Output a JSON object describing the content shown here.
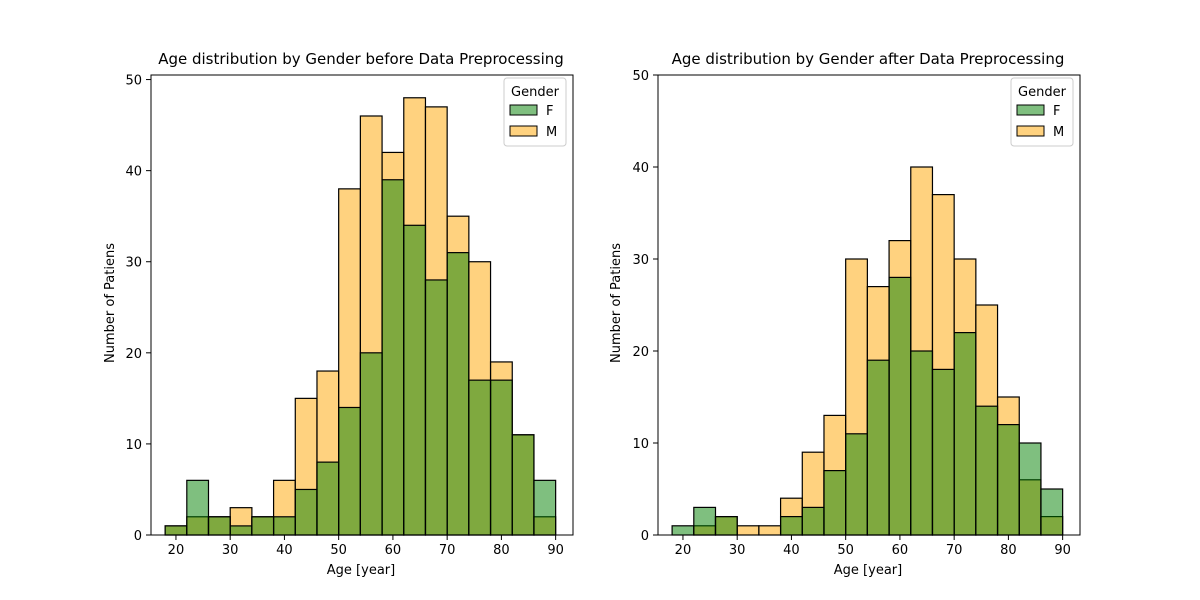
{
  "colors": {
    "F": "#008000",
    "M": "#ffa500",
    "overlap": "#7ea636",
    "edge": "#000000"
  },
  "chart_data": [
    {
      "type": "histogram",
      "title": "Age distribution by Gender before Data Preprocessing",
      "xlabel": "Age [year]",
      "ylabel": "Number of Patiens",
      "xlim": [
        15.4,
        93.2
      ],
      "ylim": [
        0,
        50.5
      ],
      "xticks": [
        20,
        30,
        40,
        50,
        60,
        70,
        80,
        90
      ],
      "yticks": [
        0,
        10,
        20,
        30,
        40,
        50
      ],
      "bin_start": 18,
      "bin_width": 4,
      "legend": {
        "title": "Gender",
        "entries": [
          "F",
          "M"
        ],
        "position": "top-right"
      },
      "series": [
        {
          "name": "F",
          "values": [
            1,
            6,
            2,
            1,
            2,
            2,
            5,
            8,
            14,
            20,
            39,
            34,
            28,
            31,
            17,
            17,
            11,
            6
          ]
        },
        {
          "name": "M",
          "values": [
            1,
            2,
            2,
            3,
            2,
            6,
            15,
            18,
            38,
            46,
            42,
            48,
            47,
            35,
            30,
            19,
            11,
            2
          ]
        }
      ]
    },
    {
      "type": "histogram",
      "title": "Age distribution by Gender after Data Preprocessing",
      "xlabel": "Age [year]",
      "ylabel": "Number of Patiens",
      "xlim": [
        15.4,
        93.2
      ],
      "ylim": [
        0,
        50
      ],
      "xticks": [
        20,
        30,
        40,
        50,
        60,
        70,
        80,
        90
      ],
      "yticks": [
        0,
        10,
        20,
        30,
        40,
        50
      ],
      "bin_start": 18,
      "bin_width": 4,
      "legend": {
        "title": "Gender",
        "entries": [
          "F",
          "M"
        ],
        "position": "top-right"
      },
      "series": [
        {
          "name": "F",
          "values": [
            1,
            3,
            2,
            0,
            0,
            2,
            3,
            7,
            11,
            19,
            28,
            20,
            18,
            22,
            14,
            12,
            10,
            5
          ]
        },
        {
          "name": "M",
          "values": [
            0,
            1,
            2,
            1,
            1,
            4,
            9,
            13,
            30,
            27,
            32,
            40,
            37,
            30,
            25,
            15,
            6,
            2
          ]
        }
      ]
    }
  ]
}
